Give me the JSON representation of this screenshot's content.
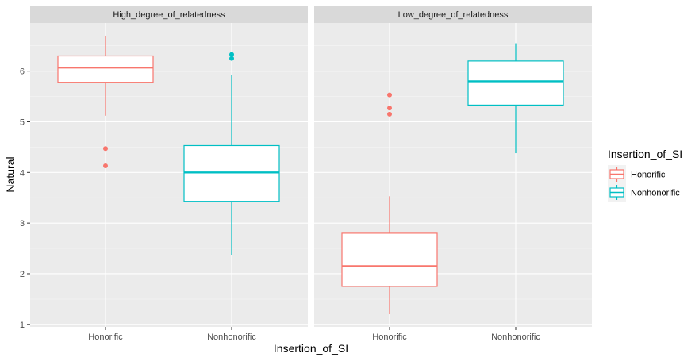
{
  "chart_data": {
    "type": "boxplot",
    "xlabel": "Insertion_of_SI",
    "ylabel": "Natural",
    "ylim": [
      0.95,
      6.95
    ],
    "y_ticks": [
      1,
      2,
      3,
      4,
      5,
      6
    ],
    "categories": [
      "Honorific",
      "Nonhonorific"
    ],
    "legend": {
      "title": "Insertion_of_SI",
      "position": "right",
      "entries": [
        {
          "label": "Honorific",
          "color": "#F8766D"
        },
        {
          "label": "Nonhonorific",
          "color": "#00BFC4"
        }
      ]
    },
    "panels": [
      {
        "title": "High_degree_of_relatedness",
        "boxes": [
          {
            "category": "Honorific",
            "color": "#F8766D",
            "whisker_low": 5.12,
            "q1": 5.78,
            "median": 6.07,
            "q3": 6.3,
            "whisker_high": 6.7,
            "outliers": [
              4.47,
              4.13
            ]
          },
          {
            "category": "Nonhonorific",
            "color": "#00BFC4",
            "whisker_low": 2.37,
            "q1": 3.43,
            "median": 4.0,
            "q3": 4.53,
            "whisker_high": 5.92,
            "outliers": [
              6.33,
              6.25
            ]
          }
        ]
      },
      {
        "title": "Low_degree_of_relatedness",
        "boxes": [
          {
            "category": "Honorific",
            "color": "#F8766D",
            "whisker_low": 1.2,
            "q1": 1.75,
            "median": 2.15,
            "q3": 2.8,
            "whisker_high": 3.53,
            "outliers": [
              5.53,
              5.27,
              5.15
            ]
          },
          {
            "category": "Nonhonorific",
            "color": "#00BFC4",
            "whisker_low": 4.38,
            "q1": 5.33,
            "median": 5.8,
            "q3": 6.2,
            "whisker_high": 6.55,
            "outliers": []
          }
        ]
      }
    ]
  }
}
